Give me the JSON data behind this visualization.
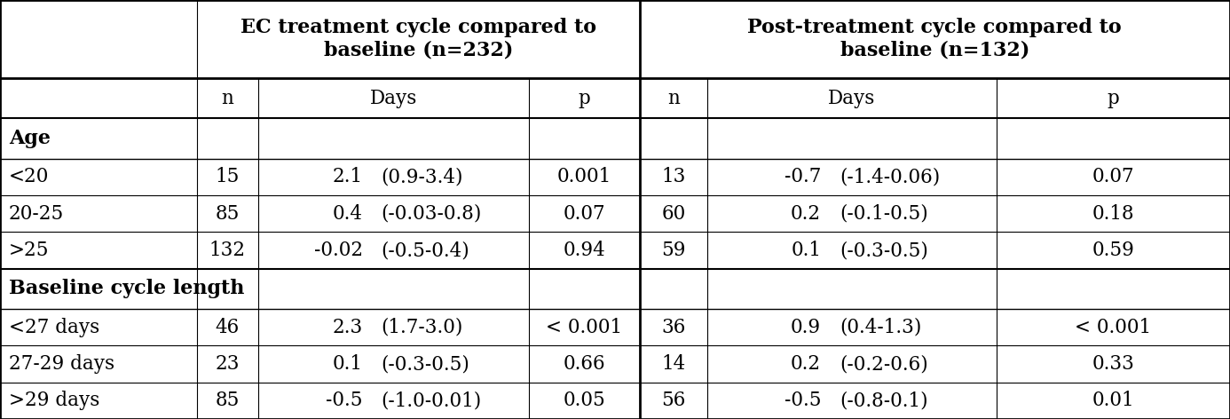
{
  "ec_header": "EC treatment cycle compared to\nbaseline (n=232)",
  "post_header": "Post-treatment cycle compared to\nbaseline (n=132)",
  "subheader": [
    "n",
    "Days",
    "p",
    "n",
    "Days",
    "p"
  ],
  "section1_label": "Age",
  "section2_label": "Baseline cycle length",
  "rows": [
    [
      "<20",
      "15",
      "2.1",
      "(0.9-3.4)",
      "0.001",
      "13",
      "-0.7",
      "(-1.4-0.06)",
      "0.07"
    ],
    [
      "20-25",
      "85",
      "0.4",
      "(-0.03-0.8)",
      "0.07",
      "60",
      "0.2",
      "(-0.1-0.5)",
      "0.18"
    ],
    [
      ">25",
      "132",
      "-0.02",
      "(-0.5-0.4)",
      "0.94",
      "59",
      "0.1",
      "(-0.3-0.5)",
      "0.59"
    ],
    [
      "<27 days",
      "46",
      "2.3",
      "(1.7-3.0)",
      "< 0.001",
      "36",
      "0.9",
      "(0.4-1.3)",
      "< 0.001"
    ],
    [
      "27-29 days",
      "23",
      "0.1",
      "(-0.3-0.5)",
      "0.66",
      "14",
      "0.2",
      "(-0.2-0.6)",
      "0.33"
    ],
    [
      ">29 days",
      "85",
      "-0.5",
      "(-1.0-0.01)",
      "0.05",
      "56",
      "-0.5",
      "(-0.8-0.1)",
      "0.01"
    ]
  ],
  "bg_color": "#ffffff",
  "line_color": "#000000",
  "font_size": 15.5,
  "header_font_size": 16,
  "section_font_size": 16
}
